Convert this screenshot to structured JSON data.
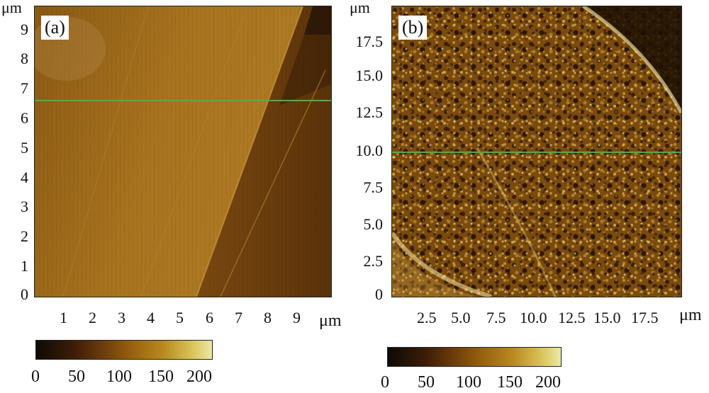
{
  "panel_a": {
    "tag": "(a)",
    "y_unit": "μm",
    "x_unit": "μm",
    "y_ticks": [
      "9",
      "8",
      "7",
      "6",
      "5",
      "4",
      "3",
      "2",
      "1",
      "0"
    ],
    "x_ticks": [
      "1",
      "2",
      "3",
      "4",
      "5",
      "6",
      "7",
      "8",
      "9"
    ],
    "colorbar_ticks": [
      "0",
      "50",
      "100",
      "150",
      "200"
    ]
  },
  "panel_b": {
    "tag": "(b)",
    "y_unit": "μm",
    "x_unit": "μm",
    "y_ticks": [
      "17.5",
      "15.0",
      "12.5",
      "10.0",
      "7.5",
      "5.0",
      "2.5",
      "0"
    ],
    "x_ticks": [
      "2.5",
      "5.0",
      "7.5",
      "10.0",
      "12.5",
      "15.0",
      "17.5"
    ],
    "colorbar_ticks": [
      "0",
      "50",
      "100",
      "150",
      "200"
    ]
  }
}
